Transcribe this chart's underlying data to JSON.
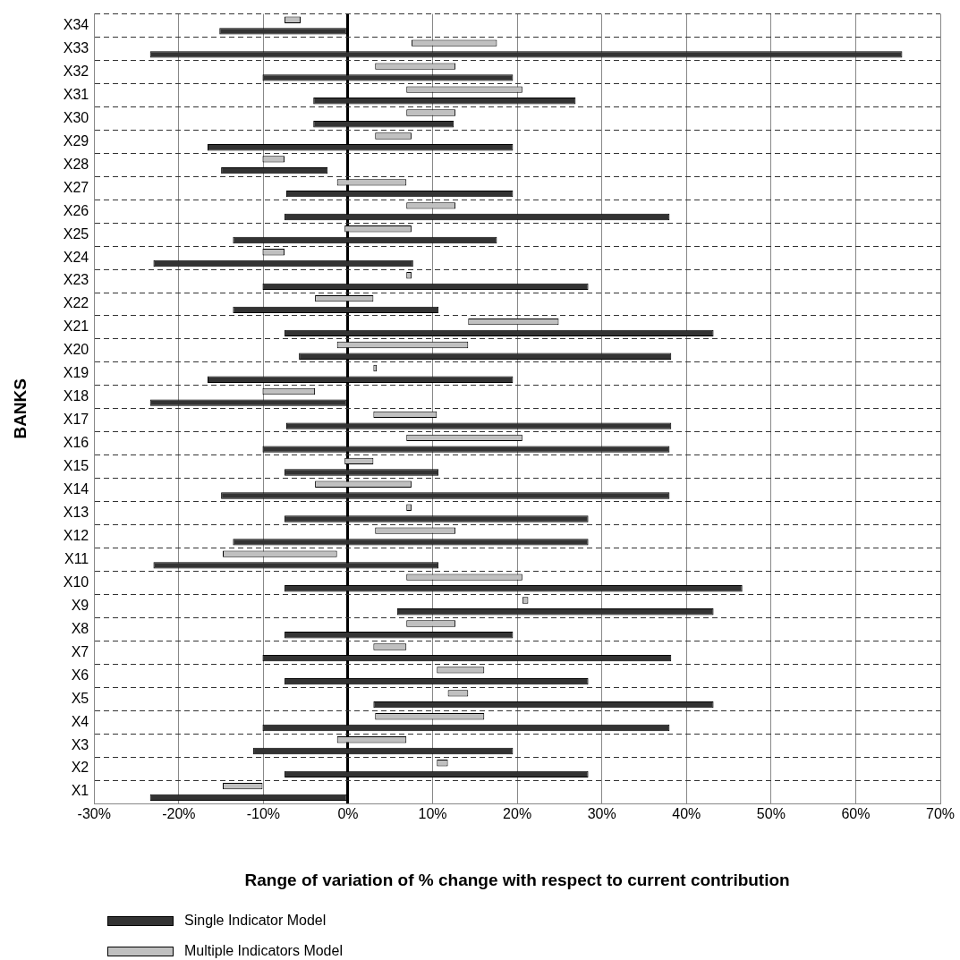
{
  "chart_data": {
    "type": "bar",
    "orientation": "horizontal",
    "xlabel": "Range of variation of % change with respect to current contribution",
    "ylabel": "BANKS",
    "categories": [
      "X34",
      "X33",
      "X32",
      "X31",
      "X30",
      "X29",
      "X28",
      "X27",
      "X26",
      "X25",
      "X24",
      "X23",
      "X22",
      "X21",
      "X20",
      "X19",
      "X18",
      "X17",
      "X16",
      "X15",
      "X14",
      "X13",
      "X12",
      "X11",
      "X10",
      "X9",
      "X8",
      "X7",
      "X6",
      "X5",
      "X4",
      "X3",
      "X2",
      "X1"
    ],
    "series": [
      {
        "name": "Single Indicator Model",
        "color": "#333333",
        "base": [
          -15.2,
          -23.4,
          -10.1,
          -4.1,
          -4.1,
          -16.6,
          -15,
          -7.3,
          -7.5,
          -13.6,
          -23,
          -10.1,
          -13.6,
          -7.5,
          -5.8,
          -16.6,
          -23.4,
          -7.3,
          -10.1,
          -7.5,
          -15,
          -7.5,
          -13.6,
          -23,
          -7.5,
          5.8,
          -7.5,
          -10.1,
          -7.5,
          3,
          -10.1,
          -11.2,
          -7.5,
          -23.4
        ],
        "values": [
          15.2,
          88.9,
          29.6,
          31,
          16.6,
          36.1,
          12.6,
          26.8,
          45.5,
          31.2,
          30.7,
          38.5,
          24.3,
          50.7,
          44,
          36.1,
          23.4,
          45.5,
          48.1,
          18.2,
          53,
          35.9,
          42,
          33.7,
          54.1,
          37.4,
          27,
          48.3,
          35.9,
          40.2,
          48.1,
          30.7,
          35.9,
          23.4
        ]
      },
      {
        "name": "Multiple Indicators Model",
        "color": "#c0c0c0",
        "base": [
          -7.5,
          7.5,
          3.2,
          6.9,
          6.9,
          3.2,
          -10.1,
          -1.3,
          6.9,
          -0.4,
          -10.1,
          6.9,
          -3.9,
          14.2,
          -1.3,
          3,
          -10.1,
          3,
          6.9,
          -0.4,
          -3.9,
          6.9,
          3.2,
          -14.8,
          6.9,
          20.6,
          6.9,
          3,
          10.5,
          11.8,
          3.2,
          -1.3,
          10.5,
          -14.8
        ],
        "values": [
          1.9,
          10.1,
          9.5,
          13.7,
          5.8,
          4.3,
          2.6,
          8.2,
          5.8,
          7.9,
          2.6,
          0.6,
          6.9,
          10.7,
          15.5,
          0.4,
          6.2,
          7.5,
          13.7,
          3.4,
          11.4,
          0.6,
          9.5,
          13.5,
          13.7,
          0.7,
          5.8,
          3.9,
          5.6,
          2.4,
          12.9,
          8.2,
          1.3,
          4.7
        ]
      }
    ],
    "xlim": [
      -30,
      70
    ],
    "xticks": [
      {
        "value": -30,
        "label": "-30%"
      },
      {
        "value": -20,
        "label": "-20%"
      },
      {
        "value": -10,
        "label": "-10%"
      },
      {
        "value": 0,
        "label": "0%"
      },
      {
        "value": 10,
        "label": "10%"
      },
      {
        "value": 20,
        "label": "20%"
      },
      {
        "value": 30,
        "label": "30%"
      },
      {
        "value": 40,
        "label": "40%"
      },
      {
        "value": 50,
        "label": "50%"
      },
      {
        "value": 60,
        "label": "60%"
      },
      {
        "value": 70,
        "label": "70%"
      }
    ],
    "grid": true,
    "legend": "bottom"
  }
}
